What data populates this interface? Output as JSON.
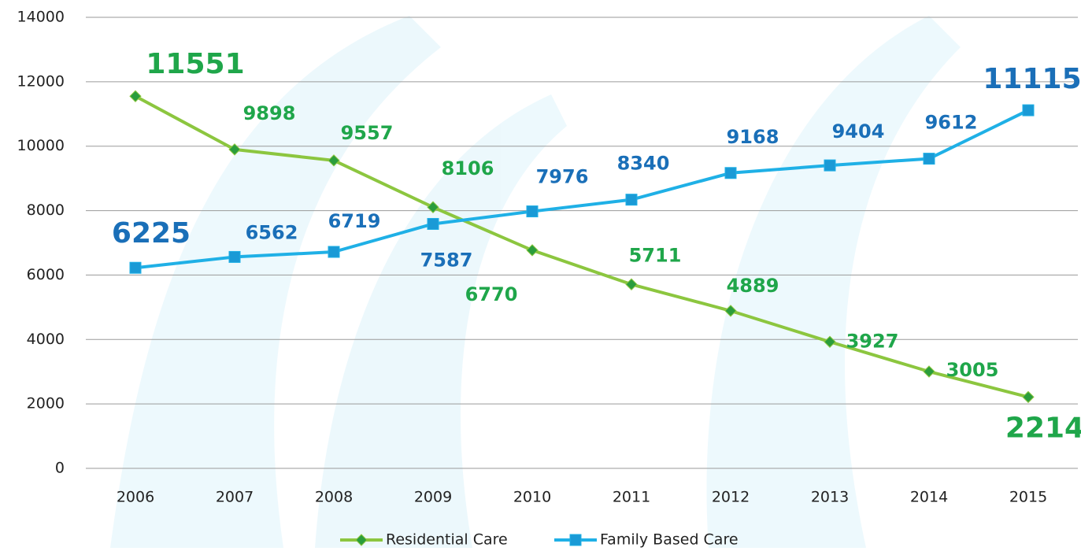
{
  "chart_data": {
    "type": "line",
    "categories": [
      "2006",
      "2007",
      "2008",
      "2009",
      "2010",
      "2011",
      "2012",
      "2013",
      "2014",
      "2015"
    ],
    "series": [
      {
        "name": "Residential Care",
        "color": "#8cc63f",
        "label_color": "#1fa64a",
        "marker": "diamond",
        "values": [
          11551,
          9898,
          9557,
          8106,
          6770,
          5711,
          4889,
          3927,
          3005,
          2214
        ]
      },
      {
        "name": "Family Based Care",
        "color": "#1fb0e6",
        "label_color": "#1a6fb8",
        "marker": "square",
        "values": [
          6225,
          6562,
          6719,
          7587,
          7976,
          8340,
          9168,
          9404,
          9612,
          11115
        ]
      }
    ],
    "ylim": [
      0,
      14000
    ],
    "yticks": [
      0,
      2000,
      4000,
      6000,
      8000,
      10000,
      12000,
      14000
    ],
    "grid": true,
    "legend": "bottom"
  }
}
